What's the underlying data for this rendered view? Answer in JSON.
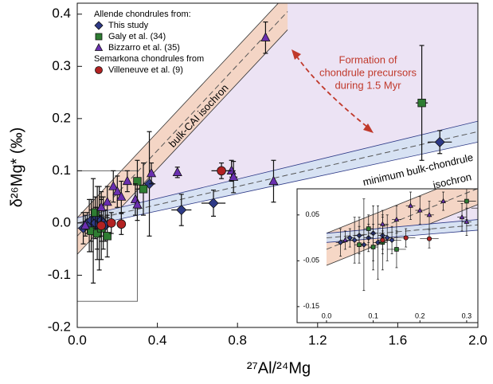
{
  "chart_data": {
    "type": "scatter",
    "y_label": "δ²⁶Mg* (‰)",
    "x_label": "²⁷Al/²⁴Mg",
    "xlim": [
      0,
      2
    ],
    "ylim": [
      -0.2,
      0.421
    ],
    "xticks": [
      {
        "value": 0,
        "label": "0.0"
      },
      0.4,
      0.8,
      1.2,
      1.6,
      {
        "value": 2,
        "label": "2.0"
      }
    ],
    "yticks": [
      -0.2,
      -0.1,
      {
        "value": 0,
        "label": "0.0"
      },
      0.1,
      0.2,
      0.3,
      0.4
    ],
    "legend_headings": [
      "Allende chondrules from:",
      "Semarkona chondrules from"
    ],
    "series": [
      {
        "name": "This study",
        "color": "#2e3a87",
        "marker": "diamond",
        "x": [
          0.03,
          0.05,
          0.06,
          0.07,
          0.08,
          0.09,
          0.1,
          0.11,
          0.12,
          0.13,
          0.14,
          0.36,
          0.52,
          0.68,
          1.81
        ],
        "values": [
          -0.01,
          0.0,
          -0.005,
          0.005,
          -0.015,
          0.0,
          0.01,
          -0.01,
          0.005,
          0.0,
          -0.005,
          0.075,
          0.025,
          0.038,
          0.155
        ],
        "xerr": [
          0.01,
          0.01,
          0.01,
          0.01,
          0.01,
          0.01,
          0.01,
          0.01,
          0.01,
          0.01,
          0.02,
          0.03,
          0.05,
          0.06,
          0.06
        ],
        "yerr": [
          0.03,
          0.02,
          0.05,
          0.04,
          0.1,
          0.03,
          0.06,
          0.08,
          0.04,
          0.05,
          0.03,
          0.1,
          0.03,
          0.025,
          0.022
        ]
      },
      {
        "name": "Galy et al. (34)",
        "color": "#2e7d32",
        "marker": "square",
        "x": [
          0.07,
          0.09,
          0.1,
          0.12,
          0.15,
          0.3,
          0.33,
          1.72
        ],
        "values": [
          -0.015,
          0.02,
          -0.02,
          -0.01,
          -0.025,
          0.08,
          0.065,
          0.23
        ],
        "xerr": [
          0.01,
          0.01,
          0.01,
          0.01,
          0.02,
          0.02,
          0.02,
          0.03
        ],
        "yerr": [
          0.04,
          0.03,
          0.05,
          0.06,
          0.04,
          0.04,
          0.05,
          0.11
        ]
      },
      {
        "name": "Bizzarro et al. (35)",
        "color": "#6a2fb0",
        "marker": "triangle",
        "x": [
          0.04,
          0.12,
          0.15,
          0.18,
          0.2,
          0.22,
          0.25,
          0.29,
          0.3,
          0.37,
          0.5,
          0.77,
          0.78,
          0.94,
          0.98
        ],
        "values": [
          -0.005,
          0.03,
          0.04,
          0.07,
          0.06,
          0.05,
          0.08,
          0.045,
          0.035,
          0.095,
          0.097,
          0.1,
          0.088,
          0.355,
          0.08
        ],
        "xerr": [
          0.01,
          0.01,
          0.01,
          0.01,
          0.01,
          0.01,
          0.01,
          0.01,
          0.01,
          0.01,
          0.01,
          0.02,
          0.02,
          0.01,
          0.01
        ],
        "yerr": [
          0.02,
          0.03,
          0.03,
          0.03,
          0.03,
          0.03,
          0.02,
          0.03,
          0.03,
          0.02,
          0.01,
          0.02,
          0.03,
          0.03,
          0.04
        ]
      },
      {
        "name": "Villeneuve et al. (9)",
        "color": "#b22222",
        "marker": "circle",
        "x": [
          0.12,
          0.17,
          0.22,
          0.72
        ],
        "values": [
          -0.005,
          0.0,
          -0.002,
          0.1
        ],
        "xerr": [
          0.01,
          0.02,
          0.02,
          0.05
        ],
        "yerr": [
          0.02,
          0.02,
          0.02,
          0.015
        ]
      }
    ],
    "region_color": "#ece3f4",
    "isochrons": [
      {
        "label": [
          "bulk-CAI isochron"
        ],
        "color": "#f5d3c0",
        "edge": "#333333",
        "x": [
          0,
          1.05
        ],
        "center": [
          -0.025,
          0.405
        ],
        "lower": [
          -0.06,
          0.37
        ],
        "upper": [
          0.01,
          0.44
        ]
      },
      {
        "label": [
          "minimum bulk-chondrule",
          "isochron"
        ],
        "color": "#d3dff2",
        "edge": "#2e3a87",
        "x": [
          0,
          2
        ],
        "center": [
          0.0,
          0.175
        ],
        "lower": [
          -0.01,
          0.155
        ],
        "upper": [
          0.01,
          0.195
        ]
      }
    ],
    "annotation": [
      "Formation of",
      "chondrule precursors",
      "during 1.5 Myr"
    ],
    "annotation_color": "#c0392b",
    "zoom_box": {
      "xlim": [
        0,
        0.3
      ],
      "ylim": [
        -0.15,
        0.1
      ]
    },
    "inset": {
      "xlim": [
        -0.063,
        0.324
      ],
      "ylim": [
        -0.185,
        0.107
      ],
      "xticks": [
        {
          "value": 0,
          "label": "0.0"
        },
        0.1,
        0.2,
        0.3
      ],
      "yticks": [
        -0.15,
        -0.05,
        0.05
      ]
    }
  }
}
